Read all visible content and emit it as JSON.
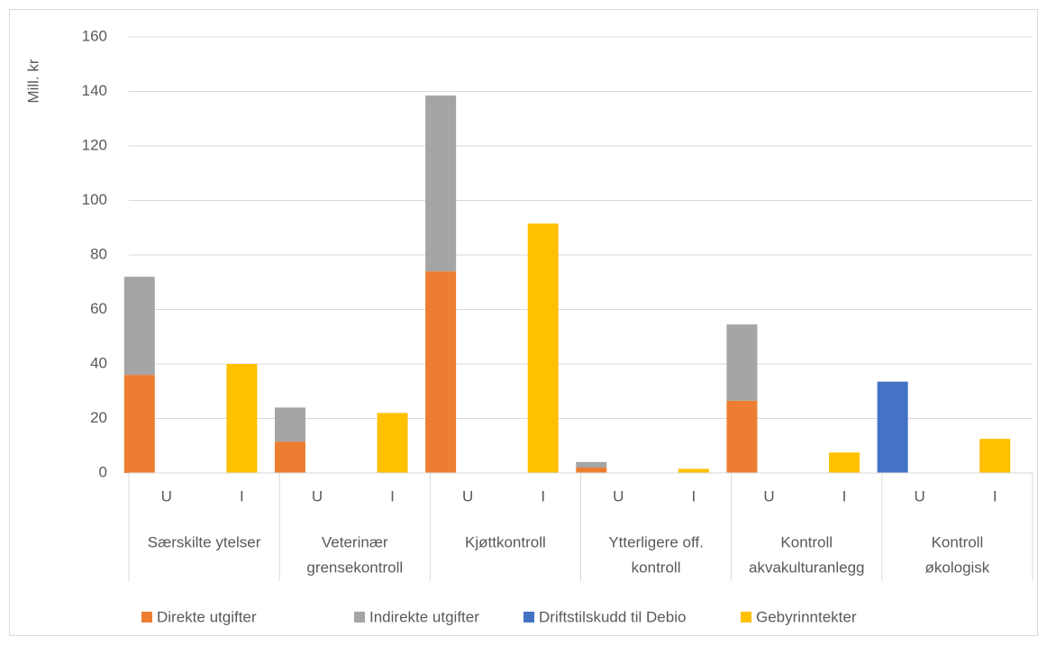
{
  "chart_data": {
    "type": "stacked_bar",
    "ylabel": "Mill. kr",
    "categories": [
      "U",
      "I",
      "U",
      "I",
      "U",
      "I",
      "U",
      "I",
      "U",
      "I",
      "U",
      "I"
    ],
    "groups": [
      [
        "Særskilte ytelser"
      ],
      [
        "Veterinær",
        "grensekontroll"
      ],
      [
        "Kjøttkontroll"
      ],
      [
        "Ytterligere off.",
        "kontroll"
      ],
      [
        "Kontroll",
        "akvakulturanlegg"
      ],
      [
        "Kontroll",
        "økologisk"
      ]
    ],
    "series": [
      {
        "name": "Direkte utgifter",
        "color": "#ed7d31",
        "values": [
          36,
          null,
          11.5,
          null,
          74,
          null,
          2,
          null,
          26.5,
          null,
          null,
          null
        ]
      },
      {
        "name": "Indirekte utgifter",
        "color": "#a5a5a5",
        "values": [
          36,
          null,
          12.5,
          null,
          64.5,
          null,
          2,
          null,
          28,
          null,
          null,
          null
        ]
      },
      {
        "name": "Driftstilskudd til Debio",
        "color": "#4472c4",
        "values": [
          null,
          null,
          null,
          null,
          null,
          null,
          null,
          null,
          null,
          null,
          33.5,
          null
        ]
      },
      {
        "name": "Gebyrinntekter",
        "color": "#ffc000",
        "values": [
          null,
          40,
          null,
          22,
          null,
          91.5,
          null,
          1.5,
          null,
          7.5,
          null,
          12.5
        ]
      }
    ],
    "ylim": [
      0,
      160
    ],
    "yticks": [
      0,
      20,
      40,
      60,
      80,
      100,
      120,
      140,
      160
    ],
    "grid": true,
    "legend": "bottom"
  }
}
